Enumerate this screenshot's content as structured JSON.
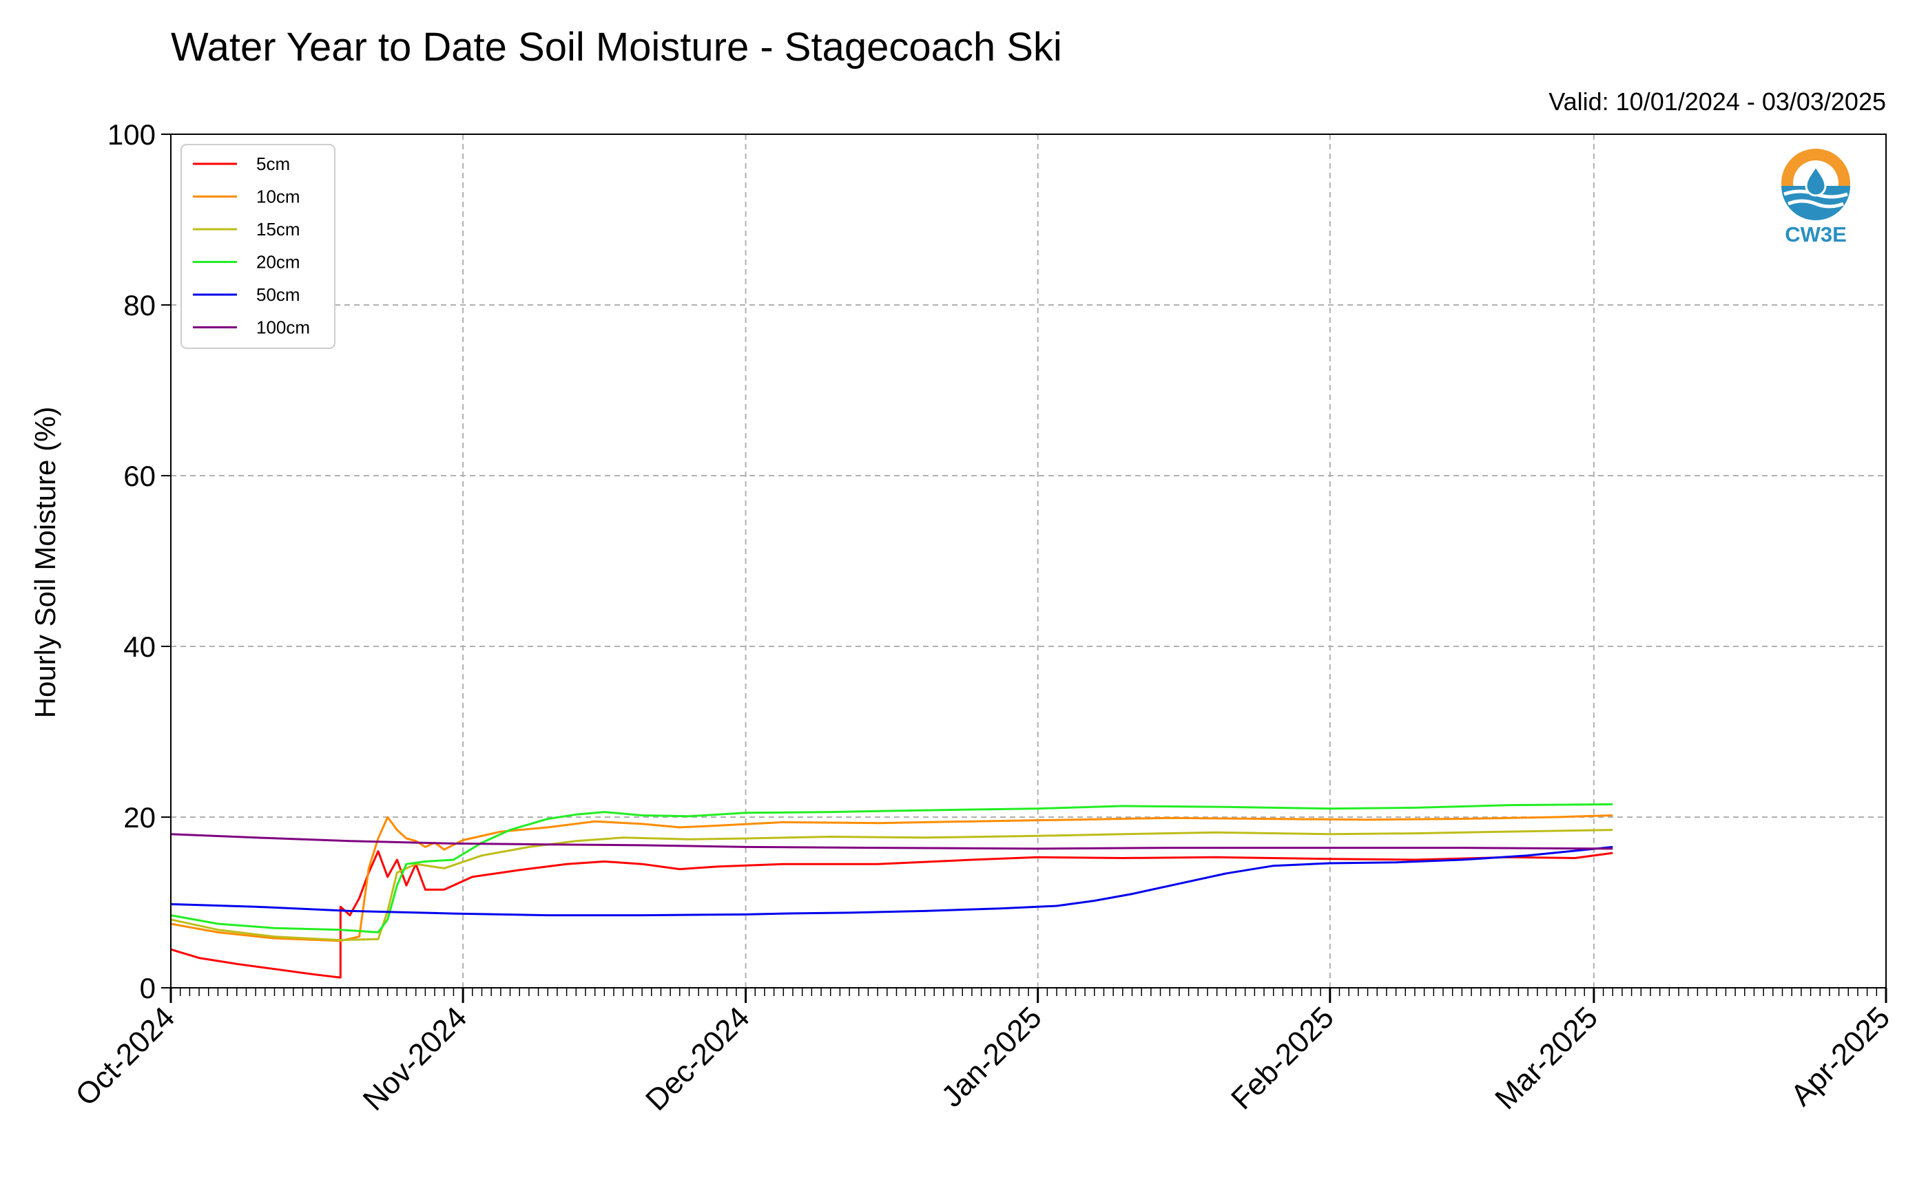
{
  "chart_data": {
    "type": "line",
    "title": "Water Year to Date Soil Moisture - Stagecoach Ski",
    "subtitle": "Valid: 10/01/2024 - 03/03/2025",
    "ylabel": "Hourly Soil Moisture (%)",
    "xlabel": "",
    "ylim": [
      0,
      100
    ],
    "xlim": [
      "2024-10-01",
      "2025-04-01"
    ],
    "yticks": [
      "0",
      "20",
      "40",
      "60",
      "80",
      "100"
    ],
    "xticks": [
      {
        "date": "2024-10-01",
        "label": "Oct-2024"
      },
      {
        "date": "2024-11-01",
        "label": "Nov-2024"
      },
      {
        "date": "2024-12-01",
        "label": "Dec-2024"
      },
      {
        "date": "2025-01-01",
        "label": "Jan-2025"
      },
      {
        "date": "2025-02-01",
        "label": "Feb-2025"
      },
      {
        "date": "2025-03-01",
        "label": "Mar-2025"
      },
      {
        "date": "2025-04-01",
        "label": "Apr-2025"
      }
    ],
    "grid": true,
    "legend_position": "top-left",
    "series": [
      {
        "name": "5cm",
        "color": "#ff0000",
        "points": [
          [
            "2024-10-01",
            4.5
          ],
          [
            "2024-10-04",
            3.5
          ],
          [
            "2024-10-08",
            2.8
          ],
          [
            "2024-10-12",
            2.2
          ],
          [
            "2024-10-16",
            1.6
          ],
          [
            "2024-10-19",
            1.2
          ],
          [
            "2024-10-19",
            9.5
          ],
          [
            "2024-10-20",
            8.5
          ],
          [
            "2024-10-21",
            10.5
          ],
          [
            "2024-10-22",
            13.5
          ],
          [
            "2024-10-23",
            16.0
          ],
          [
            "2024-10-24",
            13.0
          ],
          [
            "2024-10-25",
            15.0
          ],
          [
            "2024-10-26",
            12.0
          ],
          [
            "2024-10-27",
            14.5
          ],
          [
            "2024-10-28",
            11.5
          ],
          [
            "2024-10-30",
            11.5
          ],
          [
            "2024-11-02",
            13.0
          ],
          [
            "2024-11-07",
            13.8
          ],
          [
            "2024-11-12",
            14.5
          ],
          [
            "2024-11-16",
            14.8
          ],
          [
            "2024-11-20",
            14.5
          ],
          [
            "2024-11-24",
            13.9
          ],
          [
            "2024-11-28",
            14.2
          ],
          [
            "2024-12-05",
            14.5
          ],
          [
            "2024-12-15",
            14.5
          ],
          [
            "2024-12-25",
            15.0
          ],
          [
            "2025-01-01",
            15.3
          ],
          [
            "2025-01-10",
            15.2
          ],
          [
            "2025-01-20",
            15.3
          ],
          [
            "2025-02-01",
            15.1
          ],
          [
            "2025-02-10",
            15.0
          ],
          [
            "2025-02-20",
            15.3
          ],
          [
            "2025-02-27",
            15.2
          ],
          [
            "2025-03-03",
            15.8
          ]
        ]
      },
      {
        "name": "10cm",
        "color": "#ff8c00",
        "points": [
          [
            "2024-10-01",
            7.5
          ],
          [
            "2024-10-06",
            6.5
          ],
          [
            "2024-10-12",
            5.8
          ],
          [
            "2024-10-19",
            5.5
          ],
          [
            "2024-10-21",
            6.0
          ],
          [
            "2024-10-22",
            14.0
          ],
          [
            "2024-10-23",
            17.5
          ],
          [
            "2024-10-24",
            20.0
          ],
          [
            "2024-10-25",
            18.5
          ],
          [
            "2024-10-26",
            17.5
          ],
          [
            "2024-10-27",
            17.2
          ],
          [
            "2024-10-28",
            16.5
          ],
          [
            "2024-10-29",
            17.0
          ],
          [
            "2024-10-30",
            16.2
          ],
          [
            "2024-11-01",
            17.3
          ],
          [
            "2024-11-05",
            18.3
          ],
          [
            "2024-11-10",
            18.8
          ],
          [
            "2024-11-15",
            19.5
          ],
          [
            "2024-11-20",
            19.2
          ],
          [
            "2024-11-24",
            18.8
          ],
          [
            "2024-11-28",
            19.0
          ],
          [
            "2024-12-05",
            19.4
          ],
          [
            "2024-12-15",
            19.3
          ],
          [
            "2024-12-25",
            19.5
          ],
          [
            "2025-01-05",
            19.7
          ],
          [
            "2025-01-15",
            19.9
          ],
          [
            "2025-01-25",
            19.8
          ],
          [
            "2025-02-05",
            19.7
          ],
          [
            "2025-02-15",
            19.8
          ],
          [
            "2025-02-25",
            20.0
          ],
          [
            "2025-03-03",
            20.2
          ]
        ]
      },
      {
        "name": "15cm",
        "color": "#bdbd1a",
        "points": [
          [
            "2024-10-01",
            8.0
          ],
          [
            "2024-10-06",
            6.8
          ],
          [
            "2024-10-12",
            6.0
          ],
          [
            "2024-10-19",
            5.6
          ],
          [
            "2024-10-23",
            5.7
          ],
          [
            "2024-10-24",
            9.0
          ],
          [
            "2024-10-25",
            13.5
          ],
          [
            "2024-10-27",
            14.5
          ],
          [
            "2024-10-30",
            14.0
          ],
          [
            "2024-11-03",
            15.5
          ],
          [
            "2024-11-08",
            16.5
          ],
          [
            "2024-11-13",
            17.2
          ],
          [
            "2024-11-18",
            17.6
          ],
          [
            "2024-11-25",
            17.4
          ],
          [
            "2024-12-01",
            17.5
          ],
          [
            "2024-12-10",
            17.7
          ],
          [
            "2024-12-20",
            17.6
          ],
          [
            "2025-01-01",
            17.8
          ],
          [
            "2025-01-10",
            18.0
          ],
          [
            "2025-01-20",
            18.2
          ],
          [
            "2025-02-01",
            18.0
          ],
          [
            "2025-02-10",
            18.1
          ],
          [
            "2025-02-20",
            18.3
          ],
          [
            "2025-03-03",
            18.5
          ]
        ]
      },
      {
        "name": "20cm",
        "color": "#22ee22",
        "points": [
          [
            "2024-10-01",
            8.5
          ],
          [
            "2024-10-06",
            7.5
          ],
          [
            "2024-10-12",
            7.0
          ],
          [
            "2024-10-19",
            6.8
          ],
          [
            "2024-10-23",
            6.5
          ],
          [
            "2024-10-24",
            8.0
          ],
          [
            "2024-10-25",
            12.0
          ],
          [
            "2024-10-26",
            14.5
          ],
          [
            "2024-10-28",
            14.8
          ],
          [
            "2024-10-31",
            15.0
          ],
          [
            "2024-11-03",
            17.0
          ],
          [
            "2024-11-06",
            18.5
          ],
          [
            "2024-11-10",
            19.8
          ],
          [
            "2024-11-13",
            20.3
          ],
          [
            "2024-11-16",
            20.6
          ],
          [
            "2024-11-20",
            20.2
          ],
          [
            "2024-11-25",
            20.1
          ],
          [
            "2024-12-01",
            20.5
          ],
          [
            "2024-12-10",
            20.6
          ],
          [
            "2024-12-20",
            20.8
          ],
          [
            "2025-01-01",
            21.0
          ],
          [
            "2025-01-10",
            21.3
          ],
          [
            "2025-01-20",
            21.2
          ],
          [
            "2025-02-01",
            21.0
          ],
          [
            "2025-02-10",
            21.1
          ],
          [
            "2025-02-20",
            21.4
          ],
          [
            "2025-03-03",
            21.5
          ]
        ]
      },
      {
        "name": "50cm",
        "color": "#0000ee",
        "points": [
          [
            "2024-10-01",
            9.8
          ],
          [
            "2024-10-10",
            9.5
          ],
          [
            "2024-10-20",
            9.0
          ],
          [
            "2024-10-31",
            8.7
          ],
          [
            "2024-11-10",
            8.5
          ],
          [
            "2024-11-20",
            8.5
          ],
          [
            "2024-12-01",
            8.6
          ],
          [
            "2024-12-05",
            8.7
          ],
          [
            "2024-12-12",
            8.8
          ],
          [
            "2024-12-20",
            9.0
          ],
          [
            "2024-12-28",
            9.3
          ],
          [
            "2025-01-03",
            9.6
          ],
          [
            "2025-01-07",
            10.2
          ],
          [
            "2025-01-11",
            11.0
          ],
          [
            "2025-01-16",
            12.2
          ],
          [
            "2025-01-21",
            13.4
          ],
          [
            "2025-01-26",
            14.3
          ],
          [
            "2025-02-01",
            14.6
          ],
          [
            "2025-02-08",
            14.7
          ],
          [
            "2025-02-15",
            15.0
          ],
          [
            "2025-02-22",
            15.5
          ],
          [
            "2025-03-03",
            16.5
          ]
        ]
      },
      {
        "name": "100cm",
        "color": "#800080",
        "points": [
          [
            "2024-10-01",
            18.0
          ],
          [
            "2024-10-10",
            17.6
          ],
          [
            "2024-10-20",
            17.2
          ],
          [
            "2024-10-31",
            16.9
          ],
          [
            "2024-11-10",
            16.8
          ],
          [
            "2024-11-20",
            16.7
          ],
          [
            "2024-12-01",
            16.5
          ],
          [
            "2024-12-15",
            16.4
          ],
          [
            "2025-01-01",
            16.3
          ],
          [
            "2025-01-15",
            16.4
          ],
          [
            "2025-02-01",
            16.4
          ],
          [
            "2025-02-15",
            16.4
          ],
          [
            "2025-03-03",
            16.3
          ]
        ]
      }
    ]
  },
  "logo": {
    "text": "CW3E",
    "icon": "droplet-wave-logo-icon",
    "colors": {
      "orange": "#f39a2a",
      "blue": "#2a8fc0"
    }
  }
}
